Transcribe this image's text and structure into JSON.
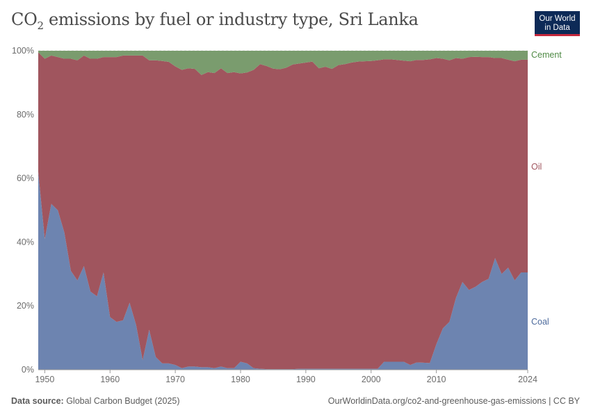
{
  "title_main": "CO",
  "title_sub": "2",
  "title_rest": " emissions by fuel or industry type, Sri Lanka",
  "logo": {
    "line1": "Our World",
    "line2": "in Data",
    "bg": "#0d2a57",
    "accent": "#c5283d"
  },
  "footer": {
    "source_label": "Data source:",
    "source_text": " Global Carbon Budget (2025)",
    "link_text": "OurWorldinData.org/co2-and-greenhouse-gas-emissions",
    "license": " | CC BY"
  },
  "chart_data": {
    "type": "area",
    "stacked": true,
    "percent": true,
    "x": [
      1949,
      1950,
      1951,
      1952,
      1953,
      1954,
      1955,
      1956,
      1957,
      1958,
      1959,
      1960,
      1961,
      1962,
      1963,
      1964,
      1965,
      1966,
      1967,
      1968,
      1969,
      1970,
      1971,
      1972,
      1973,
      1974,
      1975,
      1976,
      1977,
      1978,
      1979,
      1980,
      1981,
      1982,
      1983,
      1984,
      1985,
      1986,
      1987,
      1988,
      1989,
      1990,
      1991,
      1992,
      1993,
      1994,
      1995,
      1996,
      1997,
      1998,
      1999,
      2000,
      2001,
      2002,
      2003,
      2004,
      2005,
      2006,
      2007,
      2008,
      2009,
      2010,
      2011,
      2012,
      2013,
      2014,
      2015,
      2016,
      2017,
      2018,
      2019,
      2020,
      2021,
      2022,
      2023,
      2024
    ],
    "xlim": [
      1949,
      2024
    ],
    "x_ticks": [
      1950,
      1960,
      1970,
      1980,
      1990,
      2000,
      2010,
      2024
    ],
    "y_ticks": [
      0,
      20,
      40,
      60,
      80,
      100
    ],
    "y_tick_labels": [
      "0%",
      "20%",
      "40%",
      "60%",
      "80%",
      "100%"
    ],
    "ylim": [
      0,
      100
    ],
    "grid": "horizontal-dashed",
    "legend": "right-inline",
    "series": [
      {
        "name": "Coal",
        "color": "#6d84b0",
        "label_color": "#4c6a9c",
        "values": [
          62,
          41,
          52,
          50,
          43,
          31,
          28,
          32.5,
          24.5,
          23,
          30.5,
          16.5,
          15,
          15.5,
          21,
          14,
          3,
          12.5,
          4,
          2,
          2,
          1.5,
          0.5,
          1,
          1,
          0.8,
          0.8,
          0.5,
          1,
          0.5,
          0.5,
          2.5,
          2,
          0.5,
          0.3,
          0.2,
          0.2,
          0.2,
          0.2,
          0.2,
          0.3,
          0.3,
          0.3,
          0.3,
          0.3,
          0.3,
          0.3,
          0.3,
          0.3,
          0.3,
          0.3,
          0.3,
          0.3,
          2.5,
          2.5,
          2.5,
          2.5,
          1.5,
          2.3,
          2.2,
          2.1,
          8,
          13,
          15,
          22.5,
          27.5,
          25,
          26,
          27.5,
          28.5,
          35,
          30,
          32,
          28,
          30.5,
          30.5
        ]
      },
      {
        "name": "Oil",
        "color": "#a0555e",
        "label_color": "#a0555e",
        "values": [
          37.5,
          56.5,
          46.5,
          48,
          54.5,
          66.5,
          69,
          66,
          73,
          74.5,
          67.5,
          81.5,
          83,
          83,
          77.5,
          84.5,
          95.5,
          84.5,
          93,
          94.8,
          94.5,
          93.6,
          93.5,
          93.5,
          93.3,
          91.6,
          92.5,
          92.5,
          93.5,
          92.5,
          92.8,
          90.4,
          91.2,
          93.5,
          95.5,
          95,
          94.2,
          94,
          94.5,
          95.5,
          95.7,
          96,
          96.3,
          94.2,
          94.7,
          94,
          95.2,
          95.5,
          96,
          96.3,
          96.4,
          96.5,
          96.7,
          94.8,
          94.8,
          94.6,
          94.4,
          95.2,
          94.8,
          94.9,
          95.2,
          89.7,
          84.5,
          82,
          75.2,
          70,
          73,
          72.1,
          70.5,
          69.5,
          62.7,
          67.7,
          65.2,
          68.7,
          66.7,
          66.7
        ]
      },
      {
        "name": "Cement",
        "color": "#7a9c6e",
        "label_color": "#4f8a45",
        "values": [
          0.5,
          2.5,
          1.5,
          2,
          2.5,
          2.5,
          3,
          1.5,
          2.5,
          2.5,
          2,
          2,
          2,
          1.5,
          1.5,
          1.5,
          1.5,
          3,
          3,
          3.2,
          3.5,
          4.9,
          6,
          5.5,
          5.7,
          7.6,
          6.7,
          7,
          5.5,
          7,
          6.7,
          7.1,
          6.8,
          6,
          4.2,
          4.8,
          5.6,
          5.8,
          5.3,
          4.3,
          4,
          3.7,
          3.4,
          5.5,
          5,
          5.7,
          4.5,
          4.2,
          3.7,
          3.4,
          3.3,
          3.2,
          3,
          2.7,
          2.7,
          2.9,
          3.1,
          3.3,
          2.9,
          2.9,
          2.7,
          2.3,
          2.5,
          3,
          2.3,
          2.5,
          2,
          1.9,
          2,
          2,
          2.3,
          2.3,
          2.8,
          3.3,
          2.8,
          2.8
        ]
      }
    ]
  }
}
